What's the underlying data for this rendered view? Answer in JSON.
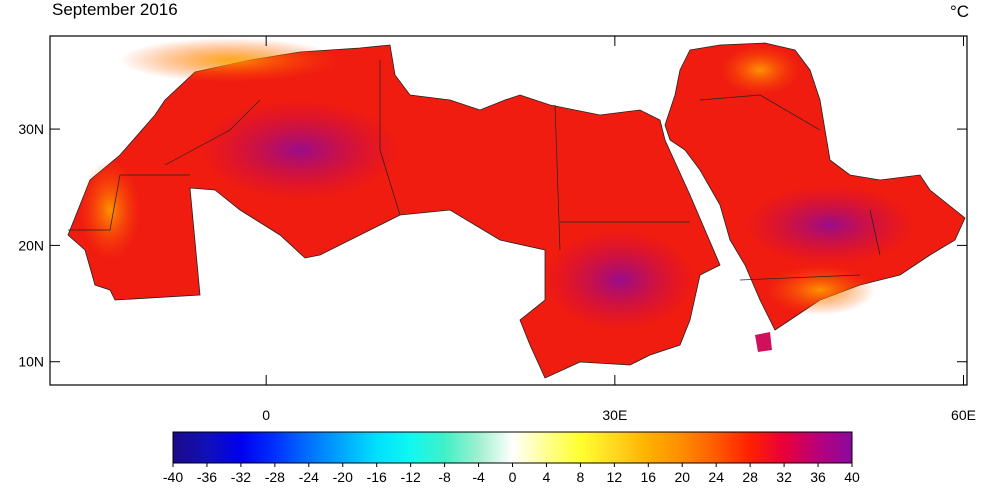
{
  "title": "September 2016",
  "unit": "°C",
  "map": {
    "xlim": [
      -18.6,
      60.3
    ],
    "ylim": [
      8,
      38
    ],
    "xticks": [
      {
        "value": 0,
        "label": "0"
      },
      {
        "value": 30,
        "label": "30E"
      },
      {
        "value": 60,
        "label": "60E"
      }
    ],
    "yticks": [
      {
        "value": 10,
        "label": "10N"
      },
      {
        "value": 20,
        "label": "20N"
      },
      {
        "value": 30,
        "label": "30N"
      }
    ]
  },
  "colorbar": {
    "lim": [
      -40,
      40
    ],
    "ticks": [
      -40,
      -36,
      -32,
      -28,
      -24,
      -20,
      -16,
      -12,
      -8,
      -4,
      0,
      4,
      8,
      12,
      16,
      20,
      24,
      28,
      32,
      36,
      40
    ],
    "colors": [
      "#1c0a8a",
      "#1010b8",
      "#0000ee",
      "#0030ff",
      "#0070ff",
      "#00a8ff",
      "#00e0ff",
      "#10f8f0",
      "#40f0c8",
      "#a0f0d0",
      "#ffffff",
      "#ffff90",
      "#ffff30",
      "#ffd820",
      "#ffb000",
      "#ff8c00",
      "#ff5a00",
      "#ff2000",
      "#e8003a",
      "#b8007a",
      "#8a0a9e"
    ]
  }
}
